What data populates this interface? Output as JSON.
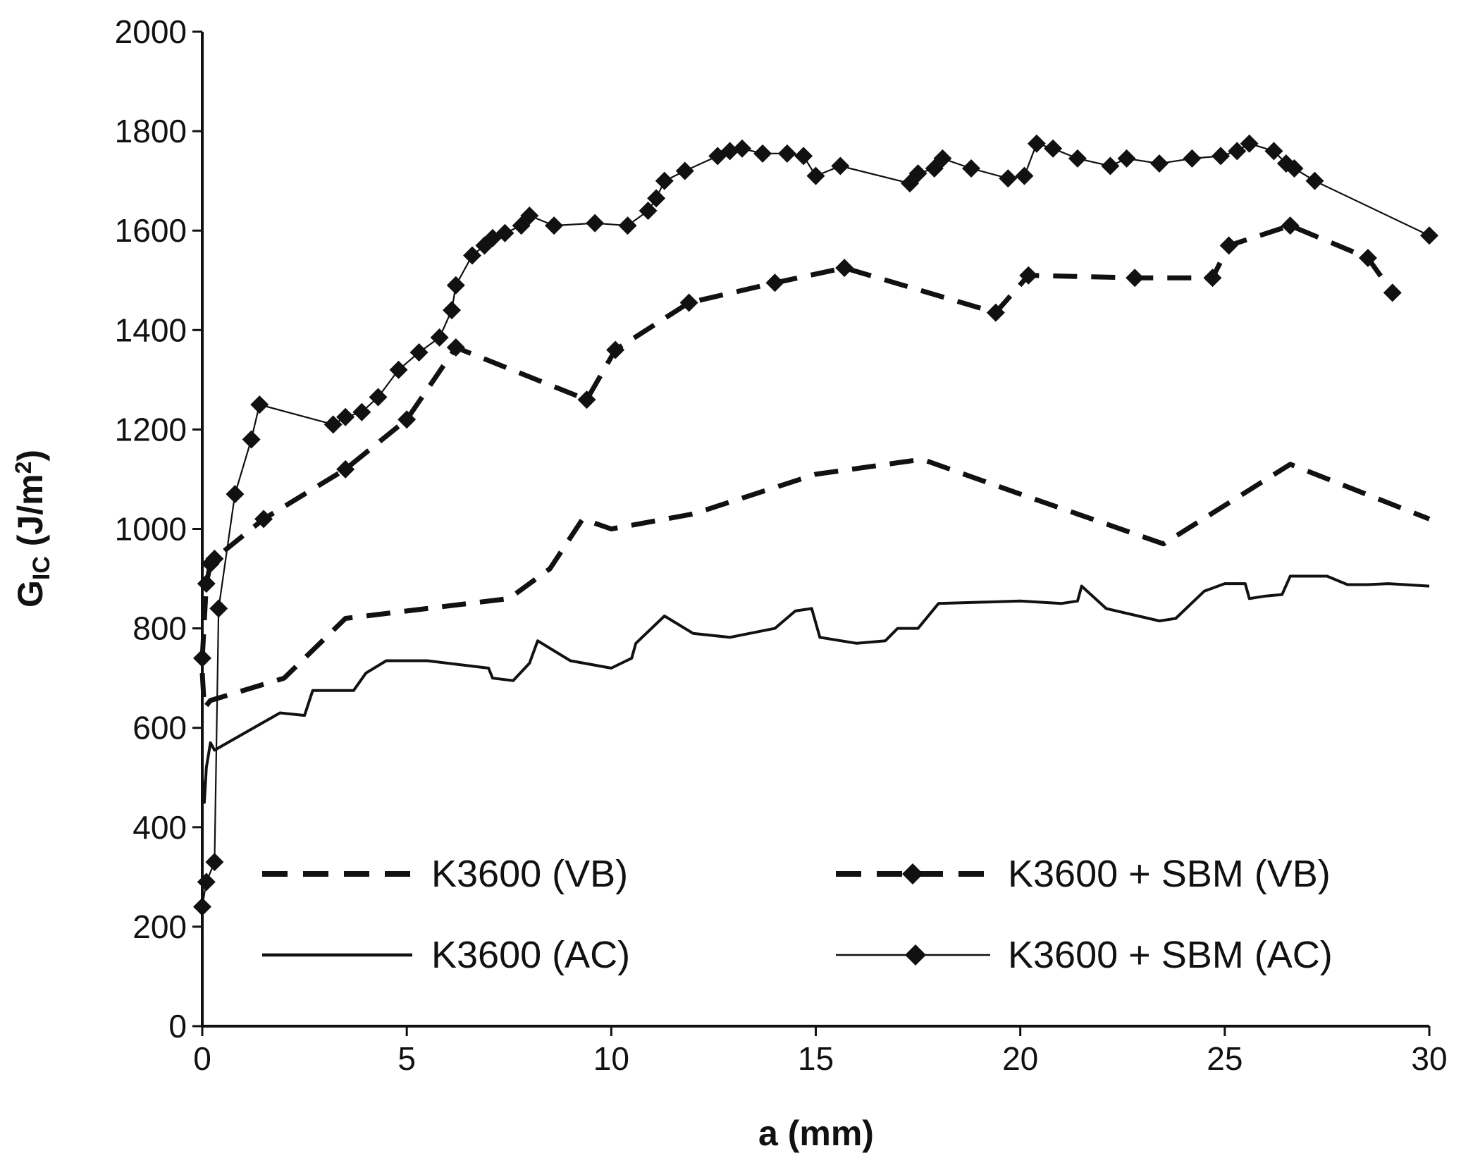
{
  "chart_data": {
    "type": "line",
    "title": "",
    "xlabel": "a (mm)",
    "ylabel_main": "G",
    "ylabel_sub": "IC",
    "ylabel_units_pre": " (J/m",
    "ylabel_units_sup": "2",
    "ylabel_units_post": ")",
    "xlim": [
      0,
      30
    ],
    "ylim": [
      0,
      2000
    ],
    "x_ticks": [
      0,
      5,
      10,
      15,
      20,
      25,
      30
    ],
    "y_ticks": [
      0,
      200,
      400,
      600,
      800,
      1000,
      1200,
      1400,
      1600,
      1800,
      2000
    ],
    "grid": false,
    "legend_position": "bottom (inside plot, two columns)",
    "series": [
      {
        "name": "K3600 (VB)",
        "style": "dashed",
        "stroke_weight": "thick",
        "markers": false,
        "points": [
          [
            0,
            710
          ],
          [
            0.05,
            640
          ],
          [
            0.2,
            655
          ],
          [
            2,
            700
          ],
          [
            3.5,
            820
          ],
          [
            5,
            835
          ],
          [
            7.5,
            860
          ],
          [
            8.5,
            920
          ],
          [
            9.3,
            1020
          ],
          [
            10,
            1000
          ],
          [
            12,
            1030
          ],
          [
            15,
            1110
          ],
          [
            17.6,
            1140
          ],
          [
            20,
            1070
          ],
          [
            23.5,
            970
          ],
          [
            26.6,
            1130
          ],
          [
            30,
            1020
          ]
        ]
      },
      {
        "name": "K3600 + SBM (VB)",
        "style": "dashed",
        "stroke_weight": "thick",
        "markers": true,
        "points": [
          [
            0,
            740
          ],
          [
            0.1,
            890
          ],
          [
            0.2,
            930
          ],
          [
            0.3,
            940
          ],
          [
            1.5,
            1020
          ],
          [
            3.5,
            1120
          ],
          [
            5,
            1220
          ],
          [
            6.2,
            1365
          ],
          [
            9.4,
            1260
          ],
          [
            10.1,
            1360
          ],
          [
            11.9,
            1455
          ],
          [
            14,
            1495
          ],
          [
            15.7,
            1525
          ],
          [
            19.4,
            1435
          ],
          [
            20.2,
            1510
          ],
          [
            22.8,
            1505
          ],
          [
            24.7,
            1505
          ],
          [
            25.1,
            1570
          ],
          [
            26.6,
            1610
          ],
          [
            28.5,
            1545
          ],
          [
            29.1,
            1475
          ]
        ]
      },
      {
        "name": "K3600 (AC)",
        "style": "solid",
        "stroke_weight": "medium",
        "markers": false,
        "points": [
          [
            0,
            500
          ],
          [
            0.05,
            450
          ],
          [
            0.1,
            520
          ],
          [
            0.2,
            570
          ],
          [
            0.3,
            555
          ],
          [
            1.9,
            630
          ],
          [
            2.5,
            625
          ],
          [
            2.7,
            675
          ],
          [
            3.7,
            675
          ],
          [
            4,
            710
          ],
          [
            4.5,
            735
          ],
          [
            5.5,
            735
          ],
          [
            7,
            720
          ],
          [
            7.1,
            700
          ],
          [
            7.6,
            695
          ],
          [
            8,
            730
          ],
          [
            8.2,
            775
          ],
          [
            9,
            735
          ],
          [
            10,
            720
          ],
          [
            10.5,
            740
          ],
          [
            10.6,
            770
          ],
          [
            11.3,
            825
          ],
          [
            12,
            790
          ],
          [
            12.9,
            782
          ],
          [
            14,
            800
          ],
          [
            14.5,
            835
          ],
          [
            14.9,
            840
          ],
          [
            15.1,
            782
          ],
          [
            16,
            770
          ],
          [
            16.7,
            775
          ],
          [
            17,
            800
          ],
          [
            17.5,
            800
          ],
          [
            18,
            850
          ],
          [
            20,
            855
          ],
          [
            21,
            850
          ],
          [
            21.4,
            855
          ],
          [
            21.5,
            885
          ],
          [
            22.1,
            840
          ],
          [
            23.4,
            815
          ],
          [
            23.8,
            820
          ],
          [
            24.5,
            875
          ],
          [
            25,
            890
          ],
          [
            25.5,
            890
          ],
          [
            25.6,
            860
          ],
          [
            26,
            865
          ],
          [
            26.4,
            868
          ],
          [
            26.6,
            905
          ],
          [
            27.5,
            905
          ],
          [
            28,
            888
          ],
          [
            28.5,
            888
          ],
          [
            29,
            890
          ],
          [
            30,
            885
          ]
        ]
      },
      {
        "name": "K3600 + SBM (AC)",
        "style": "solid",
        "stroke_weight": "thin",
        "markers": true,
        "points": [
          [
            0,
            240
          ],
          [
            0.1,
            290
          ],
          [
            0.3,
            330
          ],
          [
            0.4,
            840
          ],
          [
            0.8,
            1070
          ],
          [
            1.2,
            1180
          ],
          [
            1.4,
            1250
          ],
          [
            3.2,
            1210
          ],
          [
            3.5,
            1225
          ],
          [
            3.9,
            1235
          ],
          [
            4.3,
            1265
          ],
          [
            4.8,
            1320
          ],
          [
            5.3,
            1355
          ],
          [
            5.8,
            1385
          ],
          [
            6.1,
            1440
          ],
          [
            6.2,
            1490
          ],
          [
            6.6,
            1550
          ],
          [
            6.9,
            1570
          ],
          [
            7.1,
            1585
          ],
          [
            7.4,
            1595
          ],
          [
            7.8,
            1610
          ],
          [
            8,
            1630
          ],
          [
            8.6,
            1610
          ],
          [
            9.6,
            1615
          ],
          [
            10.4,
            1610
          ],
          [
            10.9,
            1640
          ],
          [
            11.1,
            1665
          ],
          [
            11.3,
            1700
          ],
          [
            11.8,
            1720
          ],
          [
            12.6,
            1750
          ],
          [
            12.9,
            1760
          ],
          [
            13.2,
            1765
          ],
          [
            13.7,
            1755
          ],
          [
            14.3,
            1755
          ],
          [
            14.7,
            1750
          ],
          [
            15,
            1710
          ],
          [
            15.6,
            1730
          ],
          [
            17.3,
            1695
          ],
          [
            17.5,
            1715
          ],
          [
            17.9,
            1725
          ],
          [
            18.1,
            1745
          ],
          [
            18.8,
            1725
          ],
          [
            19.7,
            1705
          ],
          [
            20.1,
            1710
          ],
          [
            20.4,
            1775
          ],
          [
            20.8,
            1765
          ],
          [
            21.4,
            1745
          ],
          [
            22.2,
            1730
          ],
          [
            22.6,
            1745
          ],
          [
            23.4,
            1735
          ],
          [
            24.2,
            1745
          ],
          [
            24.9,
            1750
          ],
          [
            25.3,
            1760
          ],
          [
            25.6,
            1775
          ],
          [
            26.2,
            1760
          ],
          [
            26.5,
            1735
          ],
          [
            26.7,
            1725
          ],
          [
            27.2,
            1700
          ],
          [
            30,
            1590
          ]
        ]
      }
    ]
  }
}
